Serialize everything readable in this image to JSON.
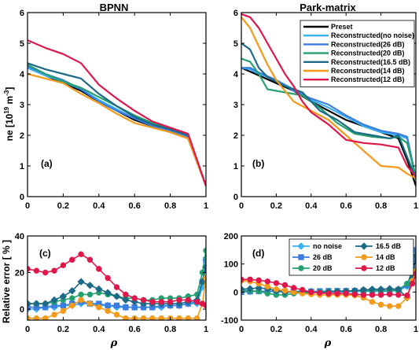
{
  "chart_data": [
    {
      "id": "a",
      "type": "line",
      "title": "BPNN",
      "panel_label": "(a)",
      "ylabel": "ne [10^19 m^-3]",
      "xlim": [
        0,
        1
      ],
      "ylim": [
        0,
        6
      ],
      "xticks": [
        "0",
        "0.2",
        "0.4",
        "0.6",
        "0.8",
        "1"
      ],
      "yticks": [
        "0",
        "1",
        "2",
        "3",
        "4",
        "5",
        "6"
      ],
      "x": [
        0,
        0.1,
        0.2,
        0.3,
        0.4,
        0.5,
        0.6,
        0.7,
        0.8,
        0.9,
        1.0
      ],
      "series": [
        {
          "ref": "preset",
          "values": [
            4.2,
            3.95,
            3.7,
            3.45,
            3.1,
            2.8,
            2.5,
            2.3,
            2.1,
            1.9,
            0.35
          ]
        },
        {
          "ref": "nonoise",
          "values": [
            4.2,
            3.95,
            3.75,
            3.5,
            3.15,
            2.85,
            2.55,
            2.35,
            2.2,
            1.95,
            0.35
          ]
        },
        {
          "ref": "26",
          "values": [
            4.25,
            4.0,
            3.8,
            3.5,
            3.1,
            2.8,
            2.55,
            2.3,
            2.15,
            1.95,
            0.35
          ]
        },
        {
          "ref": "20",
          "values": [
            4.3,
            4.0,
            3.75,
            3.55,
            3.25,
            2.95,
            2.65,
            2.4,
            2.2,
            2.0,
            0.35
          ]
        },
        {
          "ref": "16.5",
          "values": [
            4.35,
            4.15,
            4.0,
            3.85,
            3.35,
            2.95,
            2.6,
            2.35,
            2.2,
            2.0,
            0.35
          ]
        },
        {
          "ref": "14",
          "values": [
            4.0,
            3.85,
            3.7,
            3.35,
            3.05,
            2.7,
            2.4,
            2.25,
            2.1,
            1.9,
            0.35
          ]
        },
        {
          "ref": "12",
          "values": [
            5.1,
            4.85,
            4.65,
            4.35,
            3.65,
            3.2,
            2.8,
            2.45,
            2.25,
            2.05,
            0.35
          ]
        }
      ]
    },
    {
      "id": "b",
      "type": "line",
      "title": "Park-matrix",
      "panel_label": "(b)",
      "xlim": [
        0,
        1
      ],
      "ylim": [
        0,
        6
      ],
      "xticks": [
        "0",
        "0.2",
        "0.4",
        "0.6",
        "0.8",
        "1"
      ],
      "yticks": [
        "0",
        "1",
        "2",
        "3",
        "4",
        "5",
        "6"
      ],
      "legend": {
        "position": "top-right",
        "entries": [
          {
            "ref": "preset",
            "label": "Preset"
          },
          {
            "ref": "nonoise",
            "label": "Reconstructed(no noise)"
          },
          {
            "ref": "26",
            "label": "Reconstructed(26 dB)"
          },
          {
            "ref": "20",
            "label": "Reconstructed(20 dB)"
          },
          {
            "ref": "16.5",
            "label": "Reconstructed(16.5 dB)"
          },
          {
            "ref": "14",
            "label": "Reconstructed(14 dB)"
          },
          {
            "ref": "12",
            "label": "Reconstructed(12 dB)"
          }
        ]
      },
      "series": [
        {
          "ref": "preset",
          "x": [
            0,
            0.1,
            0.2,
            0.3,
            0.4,
            0.5,
            0.6,
            0.7,
            0.8,
            0.9,
            0.95,
            1.0
          ],
          "values": [
            4.2,
            3.95,
            3.7,
            3.45,
            3.1,
            2.8,
            2.5,
            2.3,
            2.1,
            1.9,
            1.2,
            0.35
          ]
        },
        {
          "ref": "nonoise",
          "x": [
            0,
            0.05,
            0.1,
            0.2,
            0.3,
            0.4,
            0.5,
            0.6,
            0.7,
            0.8,
            0.9,
            0.95,
            1.0
          ],
          "values": [
            4.2,
            4.15,
            4.0,
            3.8,
            3.5,
            3.15,
            2.9,
            2.6,
            2.3,
            2.1,
            2.0,
            1.9,
            0.55
          ]
        },
        {
          "ref": "26",
          "x": [
            0,
            0.05,
            0.1,
            0.2,
            0.3,
            0.4,
            0.5,
            0.6,
            0.7,
            0.8,
            0.9,
            0.95,
            1.0
          ],
          "values": [
            4.2,
            4.2,
            4.05,
            3.8,
            3.45,
            3.2,
            3.0,
            2.65,
            2.35,
            2.15,
            2.05,
            1.95,
            0.6
          ]
        },
        {
          "ref": "20",
          "x": [
            0,
            0.05,
            0.1,
            0.15,
            0.25,
            0.35,
            0.45,
            0.55,
            0.65,
            0.75,
            0.85,
            0.9,
            0.95,
            1.0
          ],
          "values": [
            4.5,
            4.4,
            4.0,
            3.5,
            3.4,
            3.3,
            2.9,
            2.4,
            2.05,
            1.95,
            1.9,
            1.95,
            1.75,
            0.65
          ]
        },
        {
          "ref": "16.5",
          "x": [
            0,
            0.05,
            0.1,
            0.15,
            0.25,
            0.35,
            0.45,
            0.55,
            0.65,
            0.75,
            0.85,
            0.9,
            0.95,
            1.0
          ],
          "values": [
            5.0,
            4.8,
            4.2,
            3.9,
            3.6,
            3.4,
            2.8,
            2.5,
            2.1,
            2.0,
            1.9,
            2.0,
            1.3,
            0.6
          ]
        },
        {
          "ref": "14",
          "x": [
            0,
            0.05,
            0.1,
            0.15,
            0.2,
            0.3,
            0.4,
            0.5,
            0.6,
            0.7,
            0.8,
            0.9,
            0.95,
            1.0
          ],
          "values": [
            5.85,
            5.5,
            4.9,
            4.3,
            3.8,
            3.1,
            2.8,
            2.5,
            2.0,
            1.5,
            1.0,
            0.95,
            0.75,
            0.6
          ]
        },
        {
          "ref": "12",
          "x": [
            0,
            0.05,
            0.1,
            0.15,
            0.2,
            0.25,
            0.3,
            0.35,
            0.4,
            0.5,
            0.6,
            0.7,
            0.8,
            0.9,
            0.95,
            1.0
          ],
          "values": [
            5.95,
            5.85,
            5.5,
            5.0,
            4.5,
            4.0,
            3.6,
            3.1,
            2.75,
            2.35,
            1.85,
            1.75,
            1.7,
            1.6,
            1.0,
            0.65
          ]
        }
      ]
    },
    {
      "id": "c",
      "type": "line",
      "panel_label": "(c)",
      "ylabel": "Relative error [ % ]",
      "xlabel": "ρ",
      "xlim": [
        0,
        1
      ],
      "ylim": [
        -6,
        40
      ],
      "xticks": [
        "0",
        "0.2",
        "0.4",
        "0.6",
        "0.8",
        "1"
      ],
      "yticks": [
        "0",
        "20",
        "40"
      ],
      "x": [
        0,
        0.05,
        0.1,
        0.15,
        0.2,
        0.25,
        0.3,
        0.35,
        0.4,
        0.45,
        0.5,
        0.55,
        0.6,
        0.65,
        0.7,
        0.75,
        0.8,
        0.85,
        0.9,
        0.95,
        0.98,
        1.0
      ],
      "series": [
        {
          "ref": "nonoise",
          "values": [
            0,
            0,
            1,
            1,
            2,
            2,
            3,
            3,
            2,
            2,
            1,
            1,
            1,
            1,
            1,
            1,
            2,
            2,
            3,
            3,
            12,
            27
          ]
        },
        {
          "ref": "26",
          "values": [
            1,
            1,
            1,
            2,
            2,
            3,
            4,
            3,
            3,
            2,
            2,
            1,
            1,
            1,
            1,
            2,
            2,
            2,
            3,
            4,
            15,
            27
          ]
        },
        {
          "ref": "20",
          "values": [
            3,
            3,
            3,
            4,
            5,
            6,
            8,
            8,
            9,
            8,
            7,
            6,
            6,
            5,
            5,
            6,
            6,
            6,
            7,
            8,
            20,
            32
          ]
        },
        {
          "ref": "16.5",
          "values": [
            3,
            3,
            3,
            5,
            7,
            10,
            15,
            13,
            11,
            9,
            7,
            5,
            4,
            3,
            3,
            3,
            3,
            3,
            4,
            5,
            15,
            23
          ]
        },
        {
          "ref": "14",
          "values": [
            -5,
            -5,
            -5,
            -3,
            -1,
            2,
            5,
            3,
            1,
            -1,
            -3,
            -5,
            -5,
            -5,
            -5,
            -5,
            -5,
            -5,
            -5,
            -5,
            3,
            17
          ]
        },
        {
          "ref": "12",
          "values": [
            22,
            21,
            20,
            21,
            24,
            27,
            30,
            27,
            22,
            17,
            12,
            8,
            6,
            5,
            4,
            4,
            4,
            5,
            5,
            4,
            3,
            2
          ]
        }
      ]
    },
    {
      "id": "d",
      "type": "line",
      "panel_label": "(d)",
      "xlabel": "ρ",
      "xlim": [
        0,
        1
      ],
      "ylim": [
        -100,
        200
      ],
      "xticks": [
        "0",
        "0.2",
        "0.4",
        "0.6",
        "0.8",
        "1"
      ],
      "yticks": [
        "-100",
        "0",
        "100",
        "200"
      ],
      "legend": {
        "position": "top-right",
        "entries": [
          {
            "ref": "nonoise",
            "label": "no noise"
          },
          {
            "ref": "16.5",
            "label": "16.5 dB"
          },
          {
            "ref": "26",
            "label": "26 dB"
          },
          {
            "ref": "14",
            "label": "14 dB"
          },
          {
            "ref": "20",
            "label": "20 dB"
          },
          {
            "ref": "12",
            "label": "12 dB"
          }
        ]
      },
      "x": [
        0,
        0.05,
        0.1,
        0.15,
        0.2,
        0.25,
        0.3,
        0.35,
        0.4,
        0.45,
        0.5,
        0.55,
        0.6,
        0.65,
        0.7,
        0.75,
        0.8,
        0.85,
        0.9,
        0.95,
        0.98,
        1.0
      ],
      "series": [
        {
          "ref": "nonoise",
          "values": [
            0,
            2,
            3,
            2,
            1,
            1,
            2,
            3,
            3,
            2,
            2,
            1,
            1,
            2,
            3,
            3,
            3,
            3,
            5,
            20,
            60,
            120
          ]
        },
        {
          "ref": "26",
          "values": [
            0,
            2,
            3,
            3,
            3,
            2,
            1,
            1,
            2,
            3,
            4,
            4,
            4,
            4,
            5,
            5,
            5,
            5,
            8,
            25,
            80,
            150
          ]
        },
        {
          "ref": "20",
          "values": [
            5,
            5,
            3,
            -5,
            -10,
            -10,
            -5,
            -3,
            -2,
            0,
            2,
            3,
            3,
            5,
            5,
            5,
            5,
            6,
            8,
            30,
            70,
            70
          ]
        },
        {
          "ref": "16.5",
          "values": [
            10,
            12,
            15,
            12,
            5,
            0,
            0,
            2,
            0,
            -3,
            0,
            2,
            3,
            5,
            8,
            10,
            10,
            12,
            10,
            -20,
            50,
            130
          ]
        },
        {
          "ref": "14",
          "values": [
            40,
            38,
            30,
            20,
            10,
            5,
            0,
            -5,
            -8,
            -10,
            -10,
            -10,
            -10,
            -12,
            -20,
            -35,
            -45,
            -50,
            -50,
            -20,
            40,
            75
          ]
        },
        {
          "ref": "12",
          "values": [
            45,
            45,
            42,
            38,
            32,
            25,
            15,
            8,
            0,
            -3,
            -5,
            -5,
            -5,
            -8,
            -10,
            -10,
            -10,
            -8,
            -10,
            -12,
            30,
            65
          ]
        }
      ]
    }
  ],
  "styles": {
    "preset": {
      "color": "#000000",
      "marker": "none"
    },
    "nonoise": {
      "color": "#39b1ee",
      "marker": "diamond"
    },
    "26": {
      "color": "#3b7de0",
      "marker": "square"
    },
    "20": {
      "color": "#24a06e",
      "marker": "circle"
    },
    "16.5": {
      "color": "#1d6a86",
      "marker": "diamond"
    },
    "14": {
      "color": "#f39a1a",
      "marker": "circle"
    },
    "12": {
      "color": "#e0174b",
      "marker": "circle"
    }
  }
}
